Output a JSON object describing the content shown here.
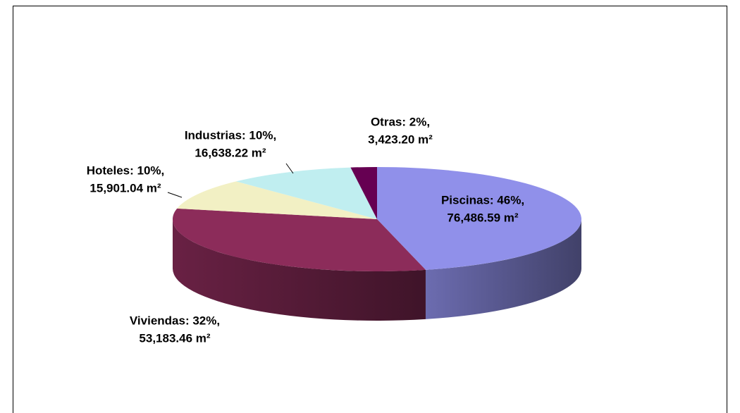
{
  "chart_data": {
    "type": "pie3d",
    "categories": [
      "Piscinas",
      "Viviendas",
      "Hoteles",
      "Industrias",
      "Otras"
    ],
    "labels": [
      "Piscinas: 46%,",
      "Viviendas: 32%,",
      "Hoteles: 10%,",
      "Industrias: 10%,",
      "Otras: 2%,"
    ],
    "values": [
      76486.59,
      53183.46,
      15901.04,
      16638.22,
      3423.2
    ],
    "value_labels": [
      "76,486.59 m²",
      "53,183.46 m²",
      "15,901.04 m²",
      "16,638.22 m²",
      "3,423.20 m²"
    ],
    "colors": [
      "#9090ea",
      "#8c2c5a",
      "#f2f0c4",
      "#c0eef0",
      "#660052"
    ]
  }
}
